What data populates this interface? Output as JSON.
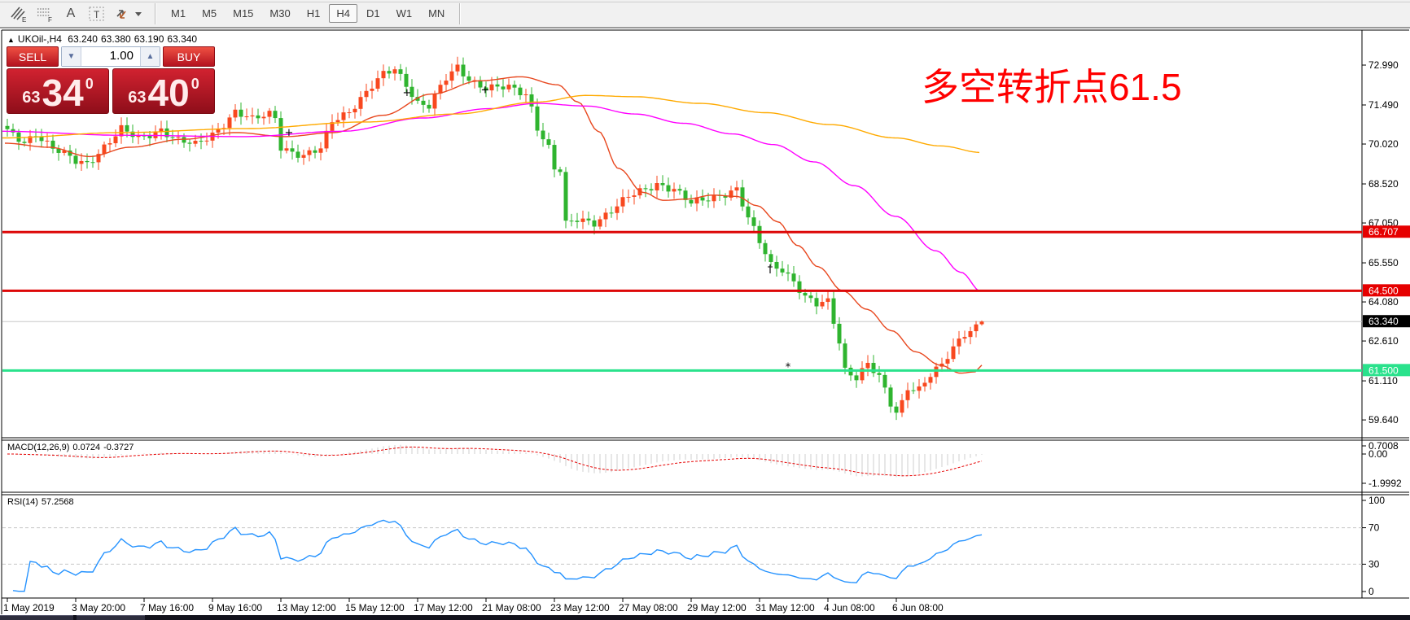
{
  "window": {
    "title_arrow": "▲",
    "symbol_title": "UKOil-,H4",
    "ohlc": {
      "open": "63.240",
      "high": "63.380",
      "low": "63.190",
      "close": "63.340"
    }
  },
  "toolbar": {
    "tools": {
      "pencil_sub": "E",
      "grid_sub": "F",
      "text_label": "A",
      "textbox_label": "T"
    },
    "timeframes": [
      "M1",
      "M5",
      "M15",
      "M30",
      "H1",
      "H4",
      "D1",
      "W1",
      "MN"
    ],
    "active_timeframe": "H4"
  },
  "trade_panel": {
    "sell_label": "SELL",
    "buy_label": "BUY",
    "volume": "1.00",
    "sell_small": "63",
    "sell_big": "34",
    "sell_sup": "0",
    "buy_small": "63",
    "buy_big": "40",
    "buy_sup": "0"
  },
  "annotation": {
    "text": "多空转折点61.5",
    "color": "#ff0000"
  },
  "indicators": {
    "macd_label": "MACD(12,26,9)",
    "macd_value": "0.0724",
    "macd_signal": "-0.3727",
    "rsi_label": "RSI(14)",
    "rsi_value": "57.2568"
  },
  "chart_data": {
    "type": "candlestick",
    "symbol": "UKOil-",
    "timeframe": "H4",
    "bars": 172,
    "up_color": "#f8481f",
    "down_color": "#2fb42f",
    "last_candle": {
      "o": 63.24,
      "h": 63.38,
      "l": 63.19,
      "c": 63.34
    },
    "close_keyframes": [
      [
        0,
        70.45
      ],
      [
        3,
        70.1
      ],
      [
        5,
        70.45
      ],
      [
        8,
        69.85
      ],
      [
        12,
        69.35
      ],
      [
        14,
        69.3
      ],
      [
        17,
        69.95
      ],
      [
        20,
        70.55
      ],
      [
        23,
        70.2
      ],
      [
        27,
        70.6
      ],
      [
        30,
        70.15
      ],
      [
        33,
        69.95
      ],
      [
        36,
        70.4
      ],
      [
        40,
        71.25
      ],
      [
        43,
        70.9
      ],
      [
        46,
        71.15
      ],
      [
        47,
        71.05
      ],
      [
        48,
        69.95
      ],
      [
        52,
        69.55
      ],
      [
        55,
        69.8
      ],
      [
        57,
        70.9
      ],
      [
        60,
        71.3
      ],
      [
        63,
        71.95
      ],
      [
        66,
        72.6
      ],
      [
        68,
        72.85
      ],
      [
        70,
        72.3
      ],
      [
        72,
        71.6
      ],
      [
        74,
        71.45
      ],
      [
        77,
        72.45
      ],
      [
        79,
        72.9
      ],
      [
        81,
        72.5
      ],
      [
        84,
        72.15
      ],
      [
        88,
        72.1
      ],
      [
        91,
        71.9
      ],
      [
        92,
        71.4
      ],
      [
        93,
        70.7
      ],
      [
        95,
        69.9
      ],
      [
        96,
        69.1
      ],
      [
        97,
        69.0
      ],
      [
        98,
        66.95
      ],
      [
        100,
        67.15
      ],
      [
        103,
        67.1
      ],
      [
        106,
        67.55
      ],
      [
        109,
        68.0
      ],
      [
        112,
        68.3
      ],
      [
        114,
        68.55
      ],
      [
        117,
        68.35
      ],
      [
        120,
        67.75
      ],
      [
        123,
        67.95
      ],
      [
        126,
        68.2
      ],
      [
        128,
        68.35
      ],
      [
        130,
        67.2
      ],
      [
        132,
        66.3
      ],
      [
        134,
        65.45
      ],
      [
        136,
        65.35
      ],
      [
        138,
        64.9
      ],
      [
        140,
        64.25
      ],
      [
        142,
        63.95
      ],
      [
        144,
        64.05
      ],
      [
        146,
        62.6
      ],
      [
        147,
        61.55
      ],
      [
        149,
        61.3
      ],
      [
        151,
        61.75
      ],
      [
        153,
        61.2
      ],
      [
        155,
        60.2
      ],
      [
        156,
        59.9
      ],
      [
        157,
        60.3
      ],
      [
        158,
        60.9
      ],
      [
        160,
        60.85
      ],
      [
        162,
        61.35
      ],
      [
        164,
        61.65
      ],
      [
        166,
        62.3
      ],
      [
        168,
        62.9
      ],
      [
        170,
        63.2
      ],
      [
        171,
        63.34
      ]
    ],
    "y_ticks": [
      {
        "v": 72.99,
        "t": "72.990"
      },
      {
        "v": 71.49,
        "t": "71.490"
      },
      {
        "v": 70.02,
        "t": "70.020"
      },
      {
        "v": 68.52,
        "t": "68.520"
      },
      {
        "v": 67.05,
        "t": "67.050"
      },
      {
        "v": 65.55,
        "t": "65.550"
      },
      {
        "v": 64.08,
        "t": "64.080"
      },
      {
        "v": 62.61,
        "t": "62.610"
      },
      {
        "v": 61.11,
        "t": "61.110"
      },
      {
        "v": 59.64,
        "t": "59.640"
      }
    ],
    "hlines": [
      {
        "v": 63.34,
        "t": "63.340",
        "color": "#c8c8c8",
        "w": 1,
        "badge": "#000000",
        "under": true
      },
      {
        "v": 66.707,
        "t": "66.707",
        "color": "#dd0707",
        "w": 3,
        "badge": "#e60000",
        "under": false
      },
      {
        "v": 64.5,
        "t": "64.500",
        "color": "#dd0707",
        "w": 3,
        "badge": "#e60000",
        "under": false
      },
      {
        "v": 61.5,
        "t": "61.500",
        "color": "#2ae28c",
        "w": 3,
        "badge": "#2ae28c",
        "under": false
      }
    ],
    "ma_lines": [
      {
        "name": "ma-fast",
        "color": "#e8471e",
        "points": [
          [
            6,
            70.05
          ],
          [
            60,
            69.9
          ],
          [
            110,
            69.55
          ],
          [
            160,
            69.9
          ],
          [
            225,
            70.2
          ],
          [
            290,
            70.45
          ],
          [
            350,
            70.3
          ],
          [
            410,
            70.45
          ],
          [
            470,
            71.1
          ],
          [
            530,
            71.9
          ],
          [
            590,
            72.4
          ],
          [
            640,
            72.55
          ],
          [
            685,
            72.25
          ],
          [
            710,
            71.6
          ],
          [
            735,
            70.5
          ],
          [
            760,
            69.1
          ],
          [
            790,
            68.2
          ],
          [
            815,
            67.9
          ],
          [
            845,
            67.95
          ],
          [
            875,
            68.1
          ],
          [
            905,
            68.05
          ],
          [
            930,
            67.7
          ],
          [
            955,
            67.1
          ],
          [
            980,
            66.2
          ],
          [
            1005,
            65.4
          ],
          [
            1035,
            64.5
          ],
          [
            1065,
            63.8
          ],
          [
            1095,
            63.0
          ],
          [
            1125,
            62.2
          ],
          [
            1155,
            61.7
          ],
          [
            1180,
            61.4
          ],
          [
            1198,
            61.45
          ],
          [
            1206,
            61.7
          ]
        ]
      },
      {
        "name": "ma-mid",
        "color": "#ff00ff",
        "points": [
          [
            3,
            70.5
          ],
          [
            150,
            70.35
          ],
          [
            300,
            70.3
          ],
          [
            420,
            70.5
          ],
          [
            520,
            71.0
          ],
          [
            600,
            71.35
          ],
          [
            660,
            71.55
          ],
          [
            720,
            71.45
          ],
          [
            780,
            71.15
          ],
          [
            840,
            70.8
          ],
          [
            900,
            70.4
          ],
          [
            950,
            70.0
          ],
          [
            1000,
            69.35
          ],
          [
            1050,
            68.45
          ],
          [
            1100,
            67.3
          ],
          [
            1150,
            66.0
          ],
          [
            1180,
            65.2
          ],
          [
            1206,
            64.45
          ]
        ]
      },
      {
        "name": "ma-slow",
        "color": "#ffaa00",
        "points": [
          [
            3,
            70.25
          ],
          [
            150,
            70.45
          ],
          [
            300,
            70.6
          ],
          [
            450,
            70.85
          ],
          [
            560,
            71.15
          ],
          [
            660,
            71.6
          ],
          [
            720,
            71.85
          ],
          [
            780,
            71.8
          ],
          [
            860,
            71.55
          ],
          [
            940,
            71.2
          ],
          [
            1020,
            70.75
          ],
          [
            1100,
            70.25
          ],
          [
            1155,
            69.95
          ],
          [
            1206,
            69.7
          ]
        ]
      }
    ],
    "markers": [
      {
        "x": 355,
        "v": 70.45,
        "g": "+"
      },
      {
        "x": 500,
        "v": 71.95,
        "g": "+"
      },
      {
        "x": 596,
        "v": 72.05,
        "g": "+"
      },
      {
        "x": 946,
        "v": 65.3,
        "g": "†"
      },
      {
        "x": 968,
        "v": 61.62,
        "g": "*"
      }
    ],
    "x_labels": [
      "1 May 2019",
      "3 May 20:00",
      "7 May 16:00",
      "9 May 16:00",
      "13 May 12:00",
      "15 May 12:00",
      "17 May 12:00",
      "21 May 08:00",
      "23 May 12:00",
      "27 May 08:00",
      "29 May 12:00",
      "31 May 12:00",
      "4 Jun 08:00",
      "6 Jun 08:00"
    ],
    "macd": {
      "params": "12,26,9",
      "hist_color": "#cfcfcf",
      "signal_color": "#e60000",
      "axis": [
        {
          "v": 0.7008,
          "t": "0.7008"
        },
        {
          "v": 0,
          "t": "0.00"
        },
        {
          "v": -1.9992,
          "t": "-1.9992"
        }
      ]
    },
    "rsi": {
      "period": 14,
      "line_color": "#2492ff",
      "levels": [
        {
          "v": 100,
          "t": "100",
          "dashed": false
        },
        {
          "v": 70,
          "t": "70",
          "dashed": true
        },
        {
          "v": 30,
          "t": "30",
          "dashed": true
        },
        {
          "v": 0,
          "t": "0",
          "dashed": false
        }
      ]
    }
  }
}
